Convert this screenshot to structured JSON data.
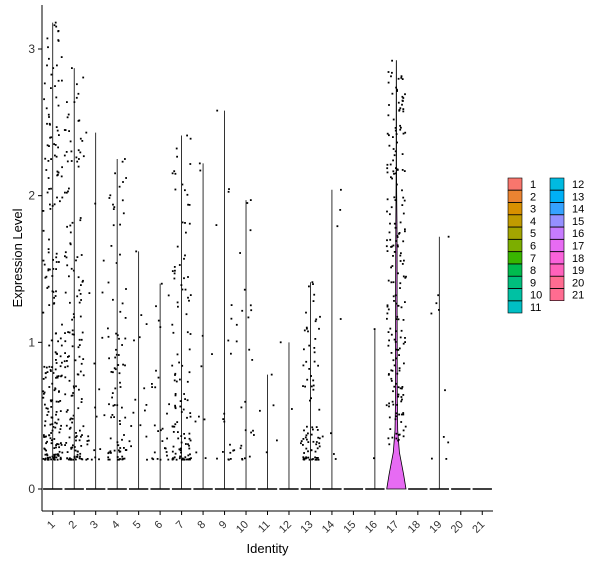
{
  "chart_data": {
    "type": "violin",
    "xlabel": "Identity",
    "ylabel": "Expression Level",
    "ylim": [
      -0.15,
      3.3
    ],
    "yticks": [
      0,
      1,
      2,
      3
    ],
    "grid": false,
    "legend_placement": "right",
    "categories": [
      "1",
      "2",
      "3",
      "4",
      "5",
      "6",
      "7",
      "8",
      "9",
      "10",
      "11",
      "12",
      "13",
      "14",
      "15",
      "16",
      "17",
      "18",
      "19",
      "20",
      "21"
    ],
    "colors": [
      "#F8766D",
      "#EA8331",
      "#D89000",
      "#C09B00",
      "#A3A500",
      "#7CAE00",
      "#39B600",
      "#00BB4E",
      "#00BF7D",
      "#00C1A3",
      "#00BFC4",
      "#00BAE0",
      "#00B0F6",
      "#35A2FF",
      "#9590FF",
      "#C77CFF",
      "#E76BF3",
      "#FA62DB",
      "#FF62BC",
      "#FF6C91",
      "#FF6C91"
    ],
    "max_expression": [
      3.18,
      2.87,
      2.43,
      2.25,
      1.62,
      1.4,
      2.41,
      2.22,
      2.58,
      1.97,
      0.78,
      1.0,
      1.41,
      2.04,
      0.0,
      1.09,
      2.92,
      0.0,
      1.72,
      0.0,
      0.0
    ],
    "nonzero_points": [
      230,
      160,
      22,
      90,
      16,
      28,
      120,
      10,
      20,
      25,
      5,
      2,
      85,
      8,
      0,
      2,
      200,
      0,
      10,
      0,
      0
    ],
    "violin_17": {
      "density": [
        [
          0,
          3.2
        ],
        [
          0.1,
          2.4
        ],
        [
          0.25,
          1.0
        ],
        [
          0.4,
          0.45
        ],
        [
          0.6,
          0.3
        ],
        [
          0.8,
          0.28
        ],
        [
          1.0,
          0.27
        ],
        [
          1.2,
          0.26
        ],
        [
          1.4,
          0.25
        ],
        [
          1.6,
          0.23
        ],
        [
          1.8,
          0.2
        ],
        [
          2.0,
          0.12
        ],
        [
          2.2,
          0.06
        ],
        [
          2.5,
          0.04
        ],
        [
          2.92,
          0.02
        ]
      ]
    },
    "legend": {
      "column1": [
        "1",
        "2",
        "3",
        "4",
        "5",
        "6",
        "7",
        "8",
        "9",
        "10",
        "11"
      ],
      "column2": [
        "12",
        "13",
        "14",
        "15",
        "16",
        "17",
        "18",
        "19",
        "20",
        "21"
      ]
    }
  }
}
